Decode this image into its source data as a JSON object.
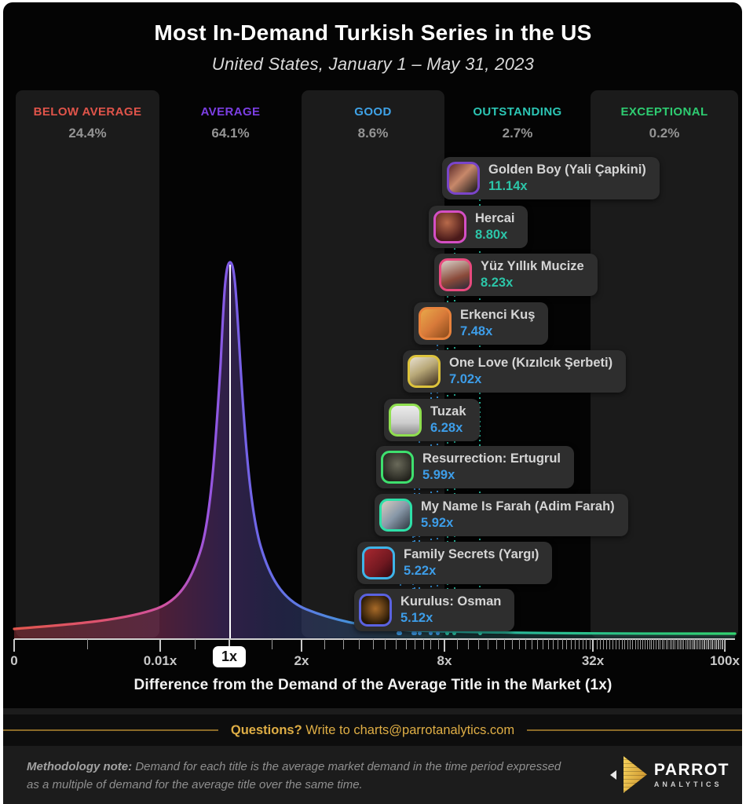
{
  "header": {
    "title": "Most In-Demand Turkish Series in the US",
    "subtitle": "United States, January 1 – May 31, 2023"
  },
  "bands": [
    {
      "label": "BELOW AVERAGE",
      "pct": "24.4%",
      "color": "#e0544a"
    },
    {
      "label": "AVERAGE",
      "pct": "64.1%",
      "color": "#7c3fe4"
    },
    {
      "label": "GOOD",
      "pct": "8.6%",
      "color": "#3fa3e8"
    },
    {
      "label": "OUTSTANDING",
      "pct": "2.7%",
      "color": "#2cc5b4"
    },
    {
      "label": "EXCEPTIONAL",
      "pct": "0.2%",
      "color": "#2ecc71"
    }
  ],
  "series": [
    {
      "name": "Golden Boy (Yali Çapkini)",
      "value": "11.14x",
      "accent": "#7a45c9",
      "value_color": "#2cc5a8"
    },
    {
      "name": "Hercai",
      "value": "8.80x",
      "accent": "#d44fc4",
      "value_color": "#2cc5a8"
    },
    {
      "name": "Yüz Yıllık Mucize",
      "value": "8.23x",
      "accent": "#e84a7e",
      "value_color": "#2cc5a8"
    },
    {
      "name": "Erkenci Kuş",
      "value": "7.48x",
      "accent": "#e8823c",
      "value_color": "#3d9de8"
    },
    {
      "name": "One Love (Kızılcık Şerbeti)",
      "value": "7.02x",
      "accent": "#ddc33c",
      "value_color": "#3d9de8"
    },
    {
      "name": "Tuzak",
      "value": "6.28x",
      "accent": "#8fdf4f",
      "value_color": "#3d9de8"
    },
    {
      "name": "Resurrection: Ertugrul",
      "value": "5.99x",
      "accent": "#3ee06e",
      "value_color": "#3d9de8"
    },
    {
      "name": "My Name Is Farah (Adim Farah)",
      "value": "5.92x",
      "accent": "#2ee0a8",
      "value_color": "#3d9de8"
    },
    {
      "name": "Family Secrets (Yargı)",
      "value": "5.22x",
      "accent": "#3eb4e8",
      "value_color": "#3d9de8"
    },
    {
      "name": "Kurulus: Osman",
      "value": "5.12x",
      "accent": "#5a62e0",
      "value_color": "#3d9de8"
    }
  ],
  "axis": {
    "ticks": [
      "0",
      "0.01x",
      "1x",
      "2x",
      "8x",
      "32x",
      "100x"
    ],
    "highlighted_tick": "1x",
    "label": "Difference from the Demand of the Average Title in the Market (1x)"
  },
  "footer": {
    "questions_bold": "Questions?",
    "questions_rest": " Write to charts@parrotanalytics.com",
    "methodology_bold": "Methodology note:",
    "methodology_rest": " Demand for each title is the average market demand in the time period expressed as a multiple of demand for the average title over the same time.",
    "logo_name": "PARROT",
    "logo_sub": "ANALYTICS"
  },
  "chart_data": {
    "type": "area",
    "title": "Most In-Demand Turkish Series in the US",
    "subtitle": "United States, January 1 – May 31, 2023",
    "xlabel": "Difference from the Demand of the Average Title in the Market (1x)",
    "x_scale": "custom log-like",
    "x_ticks": [
      "0",
      "0.01x",
      "1x",
      "2x",
      "8x",
      "32x",
      "100x"
    ],
    "curve": "market demand distribution, peak at 1x",
    "distribution_bands": [
      {
        "label": "BELOW AVERAGE",
        "share_pct": 24.4,
        "color": "#e0544a"
      },
      {
        "label": "AVERAGE",
        "share_pct": 64.1,
        "color": "#7c3fe4"
      },
      {
        "label": "GOOD",
        "share_pct": 8.6,
        "color": "#3fa3e8"
      },
      {
        "label": "OUTSTANDING",
        "share_pct": 2.7,
        "color": "#2cc5b4"
      },
      {
        "label": "EXCEPTIONAL",
        "share_pct": 0.2,
        "color": "#2ecc71"
      }
    ],
    "points": [
      {
        "name": "Golden Boy (Yali Çapkini)",
        "demand_multiple": 11.14
      },
      {
        "name": "Hercai",
        "demand_multiple": 8.8
      },
      {
        "name": "Yüz Yıllık Mucize",
        "demand_multiple": 8.23
      },
      {
        "name": "Erkenci Kuş",
        "demand_multiple": 7.48
      },
      {
        "name": "One Love (Kızılcık Şerbeti)",
        "demand_multiple": 7.02
      },
      {
        "name": "Tuzak",
        "demand_multiple": 6.28
      },
      {
        "name": "Resurrection: Ertugrul",
        "demand_multiple": 5.99
      },
      {
        "name": "My Name Is Farah (Adim Farah)",
        "demand_multiple": 5.92
      },
      {
        "name": "Family Secrets (Yargı)",
        "demand_multiple": 5.22
      },
      {
        "name": "Kurulus: Osman",
        "demand_multiple": 5.12
      }
    ]
  }
}
